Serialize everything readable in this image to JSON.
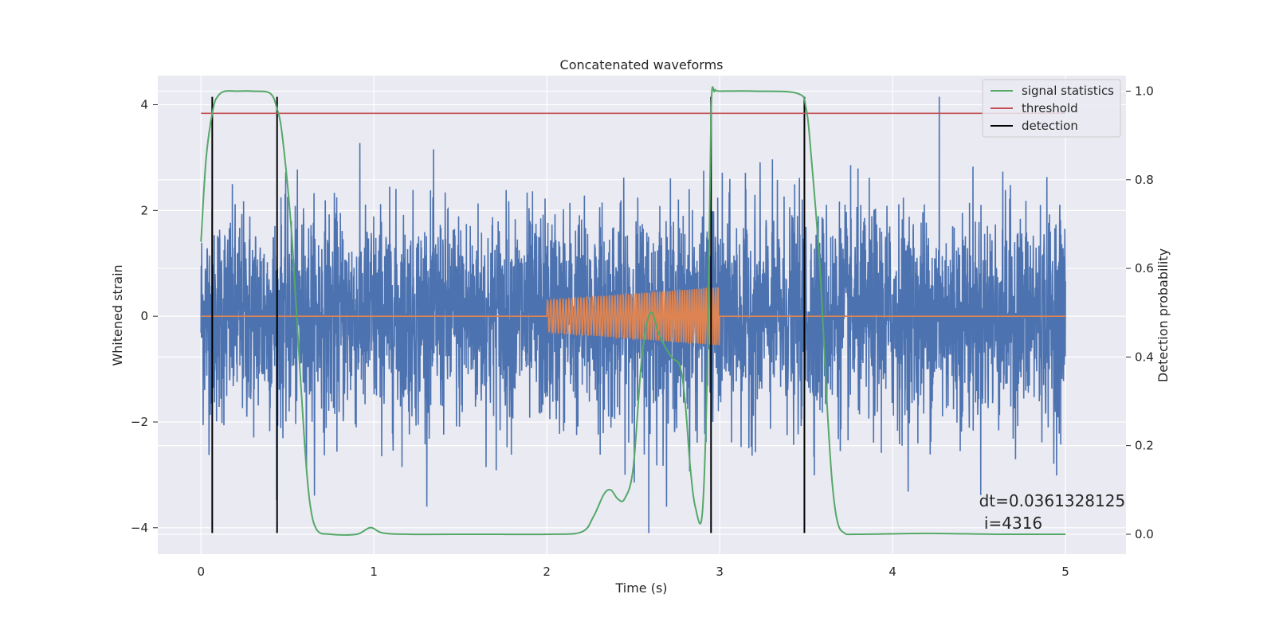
{
  "chart_data": {
    "type": "line",
    "title": "Concatenated waveforms",
    "xlabel": "Time (s)",
    "ylabel": "Whitened strain",
    "y2label": "Detection probability",
    "xlim": [
      -0.25,
      5.35
    ],
    "ylim": [
      -4.5,
      4.55
    ],
    "y2lim": [
      -0.045,
      1.035
    ],
    "xticks": [
      0,
      1,
      2,
      3,
      4,
      5
    ],
    "yticks": [
      -4,
      -2,
      0,
      2,
      4
    ],
    "y2ticks": [
      0.0,
      0.2,
      0.4,
      0.6,
      0.8,
      1.0
    ],
    "xtick_labels": [
      "0",
      "1",
      "2",
      "3",
      "4",
      "5"
    ],
    "ytick_labels": [
      "−4",
      "−2",
      "0",
      "2",
      "4"
    ],
    "y2tick_labels": [
      "0.0",
      "0.2",
      "0.4",
      "0.6",
      "0.8",
      "1.0"
    ],
    "legend": [
      {
        "label": "signal statistics",
        "color": "#55a868"
      },
      {
        "label": "threshold",
        "color": "#c44e52"
      },
      {
        "label": "detection",
        "color": "#000000"
      }
    ],
    "legend_position": "top-right",
    "grid": true,
    "series": [
      {
        "name": "whitened strain (noise)",
        "axis": "left",
        "color": "#4c72b0",
        "x_range": [
          0,
          5
        ],
        "amplitude_approx": 1.0,
        "extremes": [
          {
            "x": 2.59,
            "y": -4.1
          },
          {
            "x": 4.27,
            "y": 4.15
          }
        ]
      },
      {
        "name": "injected waveform",
        "axis": "left",
        "color": "#dd8452",
        "chirp_start": 2.0,
        "chirp_end": 3.0,
        "amplitude_start": 0.3,
        "amplitude_end": 0.55
      },
      {
        "name": "signal statistics",
        "axis": "right",
        "color": "#55a868",
        "x": [
          0,
          0.03,
          0.07,
          0.1,
          0.14,
          0.2,
          0.3,
          0.4,
          0.44,
          0.47,
          0.52,
          0.56,
          0.6,
          0.63,
          0.67,
          0.75,
          0.9,
          0.98,
          1.05,
          1.2,
          1.6,
          2.0,
          2.2,
          2.27,
          2.33,
          2.37,
          2.41,
          2.45,
          2.5,
          2.55,
          2.6,
          2.65,
          2.72,
          2.77,
          2.8,
          2.83,
          2.86,
          2.9,
          2.93,
          2.95,
          2.97,
          3.0,
          3.2,
          3.45,
          3.5,
          3.53,
          3.58,
          3.62,
          3.65,
          3.68,
          3.72,
          3.8,
          4.2,
          4.6,
          5.0
        ],
        "y": [
          0.66,
          0.85,
          0.96,
          0.99,
          1.0,
          1.0,
          1.0,
          0.995,
          0.96,
          0.9,
          0.7,
          0.45,
          0.2,
          0.07,
          0.01,
          0.0,
          0.0,
          0.015,
          0.003,
          0.0,
          0.0,
          0.0,
          0.005,
          0.04,
          0.09,
          0.1,
          0.08,
          0.08,
          0.15,
          0.4,
          0.5,
          0.45,
          0.4,
          0.38,
          0.3,
          0.15,
          0.06,
          0.05,
          0.4,
          0.95,
          1.0,
          1.0,
          1.0,
          0.995,
          0.96,
          0.85,
          0.6,
          0.3,
          0.12,
          0.03,
          0.003,
          0.0,
          0.002,
          0.0,
          0.0
        ]
      },
      {
        "name": "threshold",
        "axis": "right",
        "color": "#c44e52",
        "x": [
          0,
          5
        ],
        "y": [
          0.95,
          0.95
        ]
      },
      {
        "name": "detection",
        "axis": "left",
        "color": "#000000",
        "x": [
          0.065,
          0.44,
          2.95,
          3.49
        ],
        "y_range": [
          -4.1,
          4.15
        ]
      }
    ],
    "annotation": {
      "line1": "dt=0.0361328125",
      "line2": " i=4316",
      "x": 4.5,
      "y": -3.6
    }
  }
}
